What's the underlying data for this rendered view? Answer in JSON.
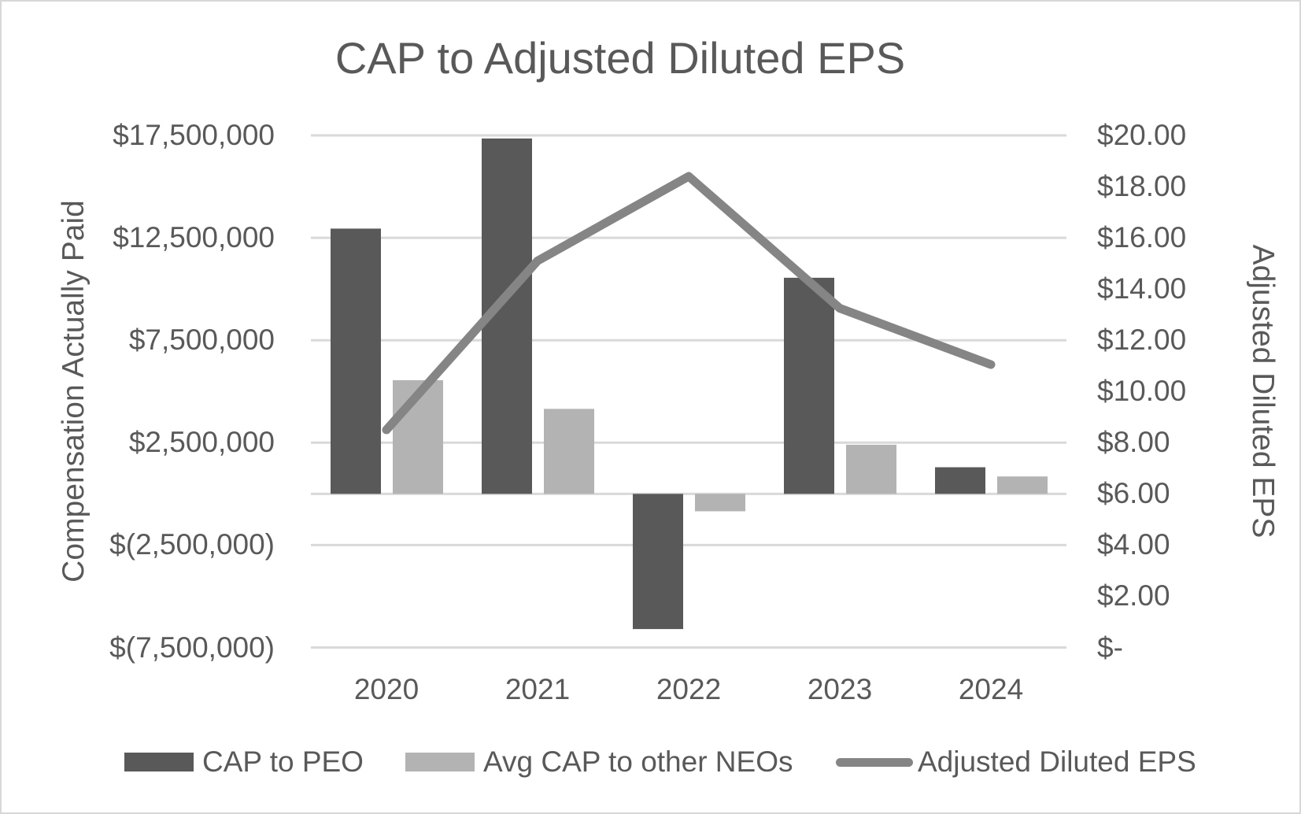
{
  "title": "CAP to Adjusted Diluted EPS",
  "chart_data": {
    "type": "combo bar+line",
    "categories": [
      "2020",
      "2021",
      "2022",
      "2023",
      "2024"
    ],
    "series": [
      {
        "name": "CAP to PEO",
        "type": "bar",
        "axis": "left",
        "color": "#595959",
        "values": [
          12950000,
          17350000,
          -6600000,
          10550000,
          1300000
        ]
      },
      {
        "name": "Avg CAP to other NEOs",
        "type": "bar",
        "axis": "left",
        "color": "#b3b3b3",
        "values": [
          5550000,
          4150000,
          -850000,
          2400000,
          850000
        ]
      },
      {
        "name": "Adjusted Diluted EPS",
        "type": "line",
        "axis": "right",
        "color": "#858585",
        "values": [
          8.5,
          15.1,
          18.4,
          13.25,
          11.05
        ]
      }
    ],
    "left_axis": {
      "title": "Compensation Actually Paid",
      "min": -7500000,
      "max": 17500000,
      "ticks": [
        {
          "value": 17500000,
          "label": "$17,500,000"
        },
        {
          "value": 12500000,
          "label": "$12,500,000"
        },
        {
          "value": 7500000,
          "label": "$7,500,000"
        },
        {
          "value": 2500000,
          "label": "$2,500,000"
        },
        {
          "value": -2500000,
          "label": "$(2,500,000)"
        },
        {
          "value": -7500000,
          "label": "$(7,500,000)"
        }
      ]
    },
    "right_axis": {
      "title": "Adjusted Diluted EPS",
      "min": 0,
      "max": 20,
      "ticks": [
        {
          "value": 20,
          "label": "$20.00"
        },
        {
          "value": 18,
          "label": "$18.00"
        },
        {
          "value": 16,
          "label": "$16.00"
        },
        {
          "value": 14,
          "label": "$14.00"
        },
        {
          "value": 12,
          "label": "$12.00"
        },
        {
          "value": 10,
          "label": "$10.00"
        },
        {
          "value": 8,
          "label": "$8.00"
        },
        {
          "value": 6,
          "label": "$6.00"
        },
        {
          "value": 4,
          "label": "$4.00"
        },
        {
          "value": 2,
          "label": "$2.00"
        },
        {
          "value": 0,
          "label": "$-"
        }
      ]
    },
    "grid": true,
    "legend_position": "bottom"
  },
  "colors": {
    "grid_line": "#d9d9d9",
    "axis_zero_line": "#d9d9d9",
    "text": "#595959",
    "background": "#ffffff",
    "frame_border": "#d7d7d7"
  }
}
